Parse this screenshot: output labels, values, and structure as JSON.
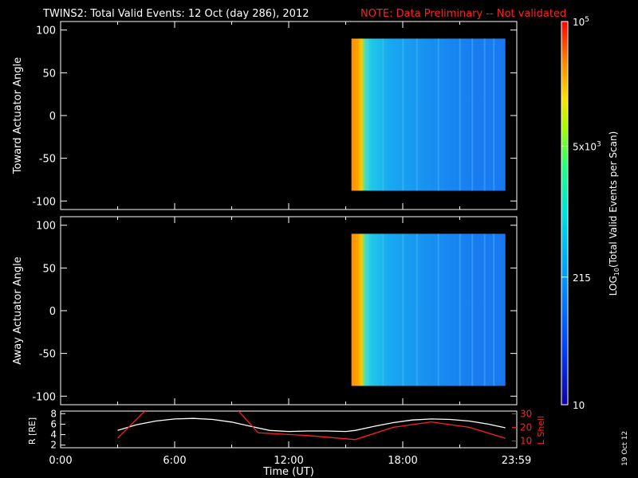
{
  "header": {
    "title": "TWINS2: Total Valid Events: 12 Oct (day 286), 2012",
    "note": "NOTE: Data Preliminary -- Not validated",
    "note_color": "#ff2020"
  },
  "side_date": "19 Oct 12",
  "chart_data": [
    {
      "type": "heatmap",
      "ylabel": "Toward Actuator Angle",
      "ylim": [
        -110,
        110
      ],
      "yticks": [
        100,
        50,
        0,
        -50,
        -100
      ],
      "ytick_labels": [
        "100",
        "50",
        "0",
        "-50",
        "-100"
      ],
      "x_range_hours": [
        15.3,
        23.4
      ],
      "y_range": [
        -88,
        90
      ]
    },
    {
      "type": "heatmap",
      "ylabel": "Away Actuator Angle",
      "ylim": [
        -110,
        110
      ],
      "yticks": [
        100,
        50,
        0,
        -50,
        -100
      ],
      "ytick_labels": [
        "100",
        "50",
        "0",
        "-50",
        "-100"
      ],
      "x_range_hours": [
        15.3,
        23.4
      ],
      "y_range": [
        -88,
        90
      ]
    },
    {
      "type": "line",
      "ylabel": "R [RE]",
      "ylabel_right": "L Shell",
      "ylim": [
        1.5,
        8.5
      ],
      "yticks": [
        2,
        4,
        6,
        8
      ],
      "ylim_right": [
        5,
        32
      ],
      "yticks_right": [
        10,
        20,
        30
      ],
      "xlabel": "Time (UT)",
      "xlim_hours": [
        0,
        24
      ],
      "xtick_labels": [
        "0:00",
        "6:00",
        "12:00",
        "18:00",
        "23:59"
      ],
      "series": [
        {
          "name": "R",
          "color": "#ffffff",
          "x": [
            3.0,
            4.0,
            5.0,
            6.0,
            7.0,
            8.0,
            9.0,
            10.0,
            11.0,
            12.0,
            13.0,
            14.0,
            15.0,
            15.5,
            16.5,
            17.5,
            18.5,
            19.5,
            20.5,
            21.5,
            22.5,
            23.4
          ],
          "values": [
            4.8,
            5.9,
            6.6,
            7.0,
            7.1,
            6.9,
            6.4,
            5.6,
            4.8,
            4.6,
            4.7,
            4.7,
            4.6,
            4.8,
            5.6,
            6.3,
            6.8,
            7.0,
            6.9,
            6.6,
            6.0,
            5.3
          ]
        },
        {
          "name": "L Shell",
          "color": "#ff2020",
          "x": [
            3.0,
            4.5,
            9.3,
            10.4,
            13.0,
            15.5,
            17.5,
            19.5,
            21.5,
            23.4
          ],
          "values": [
            12,
            33,
            33,
            16,
            14,
            11,
            20,
            24,
            20,
            12
          ]
        }
      ]
    }
  ],
  "colorbar": {
    "label": "LOG",
    "label_sub": "10",
    "label_rest": "(Total Valid Events per Scan)",
    "ticks": [
      {
        "value": 100000,
        "label": "10",
        "sup": "5"
      },
      {
        "value": 5000,
        "label": "5x10",
        "sup": "3"
      },
      {
        "value": 215,
        "label": "215",
        "sup": ""
      },
      {
        "value": 10,
        "label": "10",
        "sup": ""
      }
    ],
    "range": [
      10,
      100000
    ]
  }
}
